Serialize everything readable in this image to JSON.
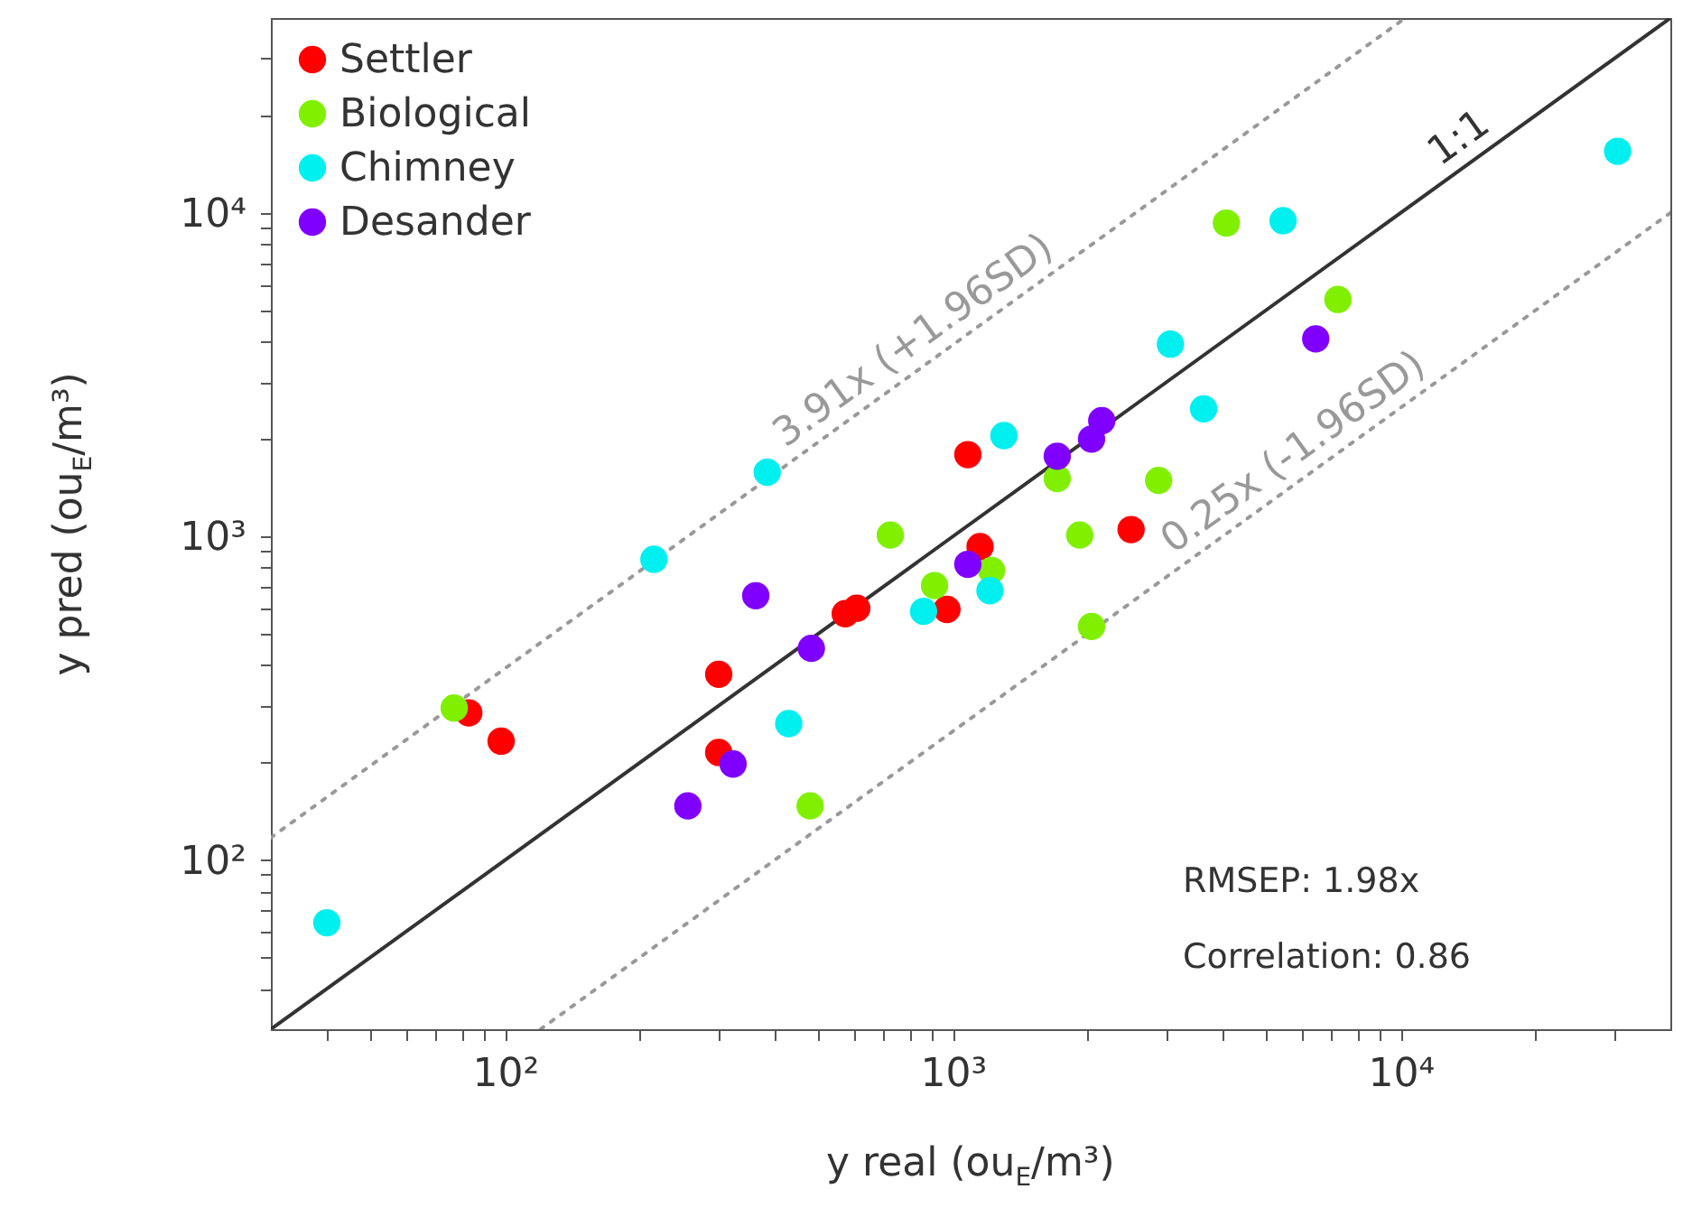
{
  "chart_data": {
    "type": "scatter",
    "xlabel": "y real (ou$_{E}$/m³)",
    "ylabel": "y pred (ou$_{E}$/m³)",
    "xlim": [
      30,
      40000
    ],
    "ylim": [
      30,
      40000
    ],
    "xticks": [
      {
        "value": 40,
        "label": null
      },
      {
        "value": 50,
        "label": null
      },
      {
        "value": 60,
        "label": null
      },
      {
        "value": 70,
        "label": null
      },
      {
        "value": 80,
        "label": null
      },
      {
        "value": 90,
        "label": null
      },
      {
        "value": 100,
        "label": "10²"
      },
      {
        "value": 200,
        "label": null
      },
      {
        "value": 300,
        "label": null
      },
      {
        "value": 400,
        "label": null
      },
      {
        "value": 500,
        "label": null
      },
      {
        "value": 600,
        "label": null
      },
      {
        "value": 700,
        "label": null
      },
      {
        "value": 800,
        "label": null
      },
      {
        "value": 900,
        "label": null
      },
      {
        "value": 1000,
        "label": "10³"
      },
      {
        "value": 2000,
        "label": null
      },
      {
        "value": 3000,
        "label": null
      },
      {
        "value": 4000,
        "label": null
      },
      {
        "value": 5000,
        "label": null
      },
      {
        "value": 6000,
        "label": null
      },
      {
        "value": 7000,
        "label": null
      },
      {
        "value": 8000,
        "label": null
      },
      {
        "value": 9000,
        "label": null
      },
      {
        "value": 10000,
        "label": "10⁴"
      },
      {
        "value": 20000,
        "label": null
      },
      {
        "value": 30000,
        "label": null
      }
    ],
    "yticks": [
      {
        "value": 40,
        "label": null
      },
      {
        "value": 50,
        "label": null
      },
      {
        "value": 60,
        "label": null
      },
      {
        "value": 70,
        "label": null
      },
      {
        "value": 80,
        "label": null
      },
      {
        "value": 90,
        "label": null
      },
      {
        "value": 100,
        "label": "10²"
      },
      {
        "value": 200,
        "label": null
      },
      {
        "value": 300,
        "label": null
      },
      {
        "value": 400,
        "label": null
      },
      {
        "value": 500,
        "label": null
      },
      {
        "value": 600,
        "label": null
      },
      {
        "value": 700,
        "label": null
      },
      {
        "value": 800,
        "label": null
      },
      {
        "value": 900,
        "label": null
      },
      {
        "value": 1000,
        "label": "10³"
      },
      {
        "value": 2000,
        "label": null
      },
      {
        "value": 3000,
        "label": null
      },
      {
        "value": 4000,
        "label": null
      },
      {
        "value": 5000,
        "label": null
      },
      {
        "value": 6000,
        "label": null
      },
      {
        "value": 7000,
        "label": null
      },
      {
        "value": 8000,
        "label": null
      },
      {
        "value": 9000,
        "label": null
      },
      {
        "value": 10000,
        "label": "10⁴"
      },
      {
        "value": 20000,
        "label": null
      },
      {
        "value": 30000,
        "label": null
      }
    ],
    "log": "xy",
    "grid": false,
    "legend": "top left",
    "marker": "circle",
    "series": [
      {
        "name": "Settler",
        "color": "#ff0000",
        "x": [
          83,
          98,
          300,
          300,
          575,
          610,
          970,
          1150,
          1080,
          2500
        ],
        "values": [
          285,
          233,
          375,
          215,
          577,
          600,
          595,
          930,
          1790,
          1050
        ]
      },
      {
        "name": "Biological",
        "color": "#80f000",
        "x": [
          77,
          480,
          910,
          725,
          1220,
          2040,
          1920,
          1710,
          2880,
          4080,
          7240
        ],
        "values": [
          295,
          147,
          705,
          1010,
          785,
          527,
          1010,
          1510,
          1490,
          9300,
          5400
        ]
      },
      {
        "name": "Chimney",
        "color": "#00f0f0",
        "x": [
          40,
          215,
          385,
          430,
          860,
          1210,
          1300,
          3060,
          3630,
          5460,
          30500
        ],
        "values": [
          64,
          850,
          1580,
          264,
          587,
          680,
          2050,
          3930,
          2480,
          9460,
          15500
        ]
      },
      {
        "name": "Desander",
        "color": "#8000ff",
        "x": [
          256,
          323,
          363,
          483,
          1080,
          1710,
          2040,
          2150,
          6460
        ],
        "values": [
          147,
          198,
          656,
          451,
          820,
          1770,
          2000,
          2280,
          4080
        ]
      },
      {
        "name": "1:1",
        "type": "line",
        "color": "#333333",
        "line_style": "solid",
        "marker": "none",
        "x": [
          30,
          40000
        ],
        "values": [
          30,
          40000
        ]
      },
      {
        "name": "3.91x (+1.96SD)",
        "type": "line",
        "color": "#999999",
        "line_style": "dotted",
        "marker": "none",
        "x": [
          30,
          10230
        ],
        "values": [
          117.3,
          40000
        ]
      },
      {
        "name": "0.25x (-1.96SD)",
        "type": "line",
        "color": "#999999",
        "line_style": "dotted",
        "marker": "none",
        "x": [
          120,
          40000
        ],
        "values": [
          30,
          10000
        ]
      }
    ],
    "annotations": [
      "RMSEP: 1.98x",
      "Correlation: 0.86"
    ]
  }
}
